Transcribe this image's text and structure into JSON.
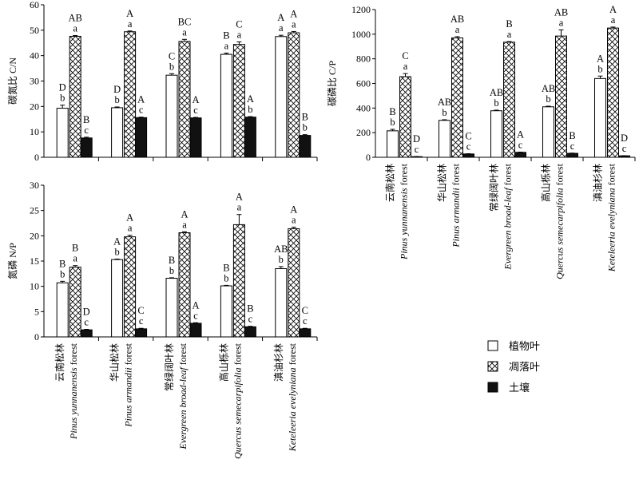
{
  "chart_data": [
    {
      "type": "bar",
      "ylabel": "碳氮比 C/N",
      "ylim": [
        0,
        60
      ],
      "yticks": [
        0,
        10,
        20,
        30,
        40,
        50,
        60
      ],
      "series": [
        {
          "name": "植物叶",
          "values": [
            19.3,
            19.5,
            32.3,
            40.5,
            47.5
          ],
          "errors": [
            1.2,
            0.3,
            0.6,
            0.5,
            0.5
          ]
        },
        {
          "name": "凋落叶",
          "values": [
            47.6,
            49.4,
            45.6,
            44.4,
            49.0
          ],
          "errors": [
            0.3,
            0.3,
            0.8,
            1.0,
            0.5
          ]
        },
        {
          "name": "土壤",
          "values": [
            7.6,
            15.6,
            15.5,
            15.8,
            8.6
          ],
          "errors": [
            0.3,
            0.2,
            0.2,
            0.2,
            0.3
          ]
        }
      ],
      "letters": [
        [
          [
            "D",
            "b"
          ],
          [
            "AB",
            "a"
          ],
          [
            "B",
            "c"
          ]
        ],
        [
          [
            "D",
            "b"
          ],
          [
            "A",
            "a"
          ],
          [
            "A",
            "c"
          ]
        ],
        [
          [
            "C",
            "b"
          ],
          [
            "BC",
            "a"
          ],
          [
            "A",
            "c"
          ]
        ],
        [
          [
            "B",
            "a"
          ],
          [
            "C",
            "a"
          ],
          [
            "A",
            "b"
          ]
        ],
        [
          [
            "A",
            "a"
          ],
          [
            "A",
            "a"
          ],
          [
            "B",
            "b"
          ]
        ]
      ]
    },
    {
      "type": "bar",
      "ylabel": "碳磷比 C/P",
      "ylim": [
        0,
        1200
      ],
      "yticks": [
        0,
        200,
        400,
        600,
        800,
        1000,
        1200
      ],
      "categories_cn": [
        "云南松林",
        "华山松林",
        "常绿阔叶林",
        "高山栎林",
        "滇油杉林"
      ],
      "categories_en": [
        "Pinus yunnanensis",
        "Pinus armandii",
        "Evergreen broad-leaf",
        "Quercus semecarpifolia",
        "Keteleeria evelyniana"
      ],
      "category_suffix": "forest",
      "series": [
        {
          "name": "植物叶",
          "values": [
            215,
            300,
            378,
            410,
            640
          ],
          "errors": [
            12,
            5,
            5,
            5,
            20
          ]
        },
        {
          "name": "凋落叶",
          "values": [
            655,
            970,
            935,
            985,
            1050
          ],
          "errors": [
            25,
            10,
            5,
            50,
            8
          ]
        },
        {
          "name": "土壤",
          "values": [
            5,
            27,
            40,
            32,
            12
          ],
          "errors": [
            1,
            2,
            2,
            2,
            1
          ]
        }
      ],
      "letters": [
        [
          [
            "B",
            "b"
          ],
          [
            "C",
            "a"
          ],
          [
            "D",
            "c"
          ]
        ],
        [
          [
            "AB",
            "b"
          ],
          [
            "AB",
            "a"
          ],
          [
            "C",
            "c"
          ]
        ],
        [
          [
            "AB",
            "b"
          ],
          [
            "B",
            "a"
          ],
          [
            "A",
            "c"
          ]
        ],
        [
          [
            "AB",
            "b"
          ],
          [
            "AB",
            "a"
          ],
          [
            "B",
            "c"
          ]
        ],
        [
          [
            "A",
            "b"
          ],
          [
            "A",
            "a"
          ],
          [
            "D",
            "c"
          ]
        ]
      ]
    },
    {
      "type": "bar",
      "ylabel": "氮磷 N/P",
      "ylim": [
        0,
        30
      ],
      "yticks": [
        0,
        5,
        10,
        15,
        20,
        25,
        30
      ],
      "categories_cn": [
        "云南松林",
        "华山松林",
        "常绿阔叶林",
        "高山栎林",
        "滇油杉林"
      ],
      "categories_en": [
        "Pinus yunnanensis",
        "Pinus armandii",
        "Evergreen broad-leaf",
        "Quercus semecarpifolia",
        "Keteleeria evelyniana"
      ],
      "category_suffix": "forest",
      "series": [
        {
          "name": "植物叶",
          "values": [
            10.7,
            15.3,
            11.6,
            10.1,
            13.5
          ],
          "errors": [
            0.3,
            0.1,
            0.1,
            0.1,
            0.4
          ]
        },
        {
          "name": "凋落叶",
          "values": [
            13.8,
            19.8,
            20.6,
            22.2,
            21.4
          ],
          "errors": [
            0.3,
            0.3,
            0.2,
            2.0,
            0.3
          ]
        },
        {
          "name": "土壤",
          "values": [
            1.4,
            1.6,
            2.7,
            2.0,
            1.6
          ],
          "errors": [
            0.1,
            0.1,
            0.1,
            0.1,
            0.1
          ]
        }
      ],
      "letters": [
        [
          [
            "B",
            "b"
          ],
          [
            "B",
            "a"
          ],
          [
            "D",
            "c"
          ]
        ],
        [
          [
            "A",
            "b"
          ],
          [
            "A",
            "a"
          ],
          [
            "C",
            "c"
          ]
        ],
        [
          [
            "B",
            "b"
          ],
          [
            "A",
            "a"
          ],
          [
            "A",
            "c"
          ]
        ],
        [
          [
            "B",
            "b"
          ],
          [
            "A",
            "a"
          ],
          [
            "B",
            "c"
          ]
        ],
        [
          [
            "AB",
            "b"
          ],
          [
            "A",
            "a"
          ],
          [
            "C",
            "c"
          ]
        ]
      ]
    }
  ],
  "legend": [
    {
      "label": "植物叶",
      "fill": "white"
    },
    {
      "label": "凋落叶",
      "fill": "crosshatch"
    },
    {
      "label": "土壤",
      "fill": "black"
    }
  ],
  "colors": {
    "bar_outline": "#000000",
    "soil_fill": "#111111",
    "axis": "#000000",
    "background": "#ffffff"
  }
}
